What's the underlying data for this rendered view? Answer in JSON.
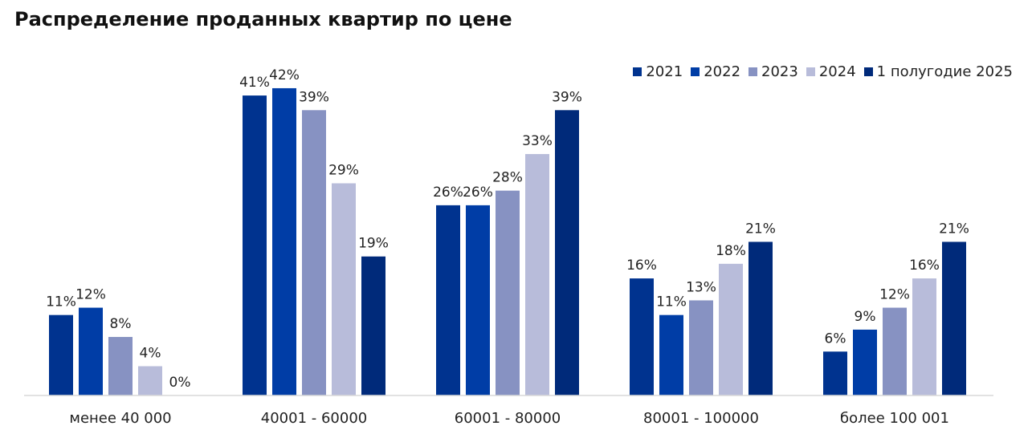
{
  "title": "Распределение проданных квартир по цене",
  "chart_data": {
    "type": "bar",
    "title": "Распределение проданных квартир по цене",
    "xlabel": "",
    "ylabel": "",
    "ylim": [
      0,
      45
    ],
    "grid": false,
    "legend_position": "top-right",
    "categories": [
      "менее 40 000",
      "40001 - 60000",
      "60001 - 80000",
      "80001 - 100000",
      "более 100 001"
    ],
    "series": [
      {
        "name": "2021",
        "color": "#00338f",
        "values": [
          11,
          41,
          26,
          16,
          6
        ],
        "labels": [
          "11%",
          "41%",
          "26%",
          "16%",
          "6%"
        ]
      },
      {
        "name": "2022",
        "color": "#003da6",
        "values": [
          12,
          42,
          26,
          11,
          9
        ],
        "labels": [
          "12%",
          "42%",
          "26%",
          "11%",
          "9%"
        ]
      },
      {
        "name": "2023",
        "color": "#8792c2",
        "values": [
          8,
          39,
          28,
          13,
          12
        ],
        "labels": [
          "8%",
          "39%",
          "28%",
          "13%",
          "12%"
        ]
      },
      {
        "name": "2024",
        "color": "#b8bcda",
        "values": [
          4,
          29,
          33,
          18,
          16
        ],
        "labels": [
          "4%",
          "29%",
          "33%",
          "18%",
          "16%"
        ]
      },
      {
        "name": "1 полугодие 2025",
        "color": "#002a7a",
        "values": [
          0,
          19,
          39,
          21,
          21
        ],
        "labels": [
          "0%",
          "19%",
          "39%",
          "21%",
          "21%"
        ]
      }
    ]
  }
}
